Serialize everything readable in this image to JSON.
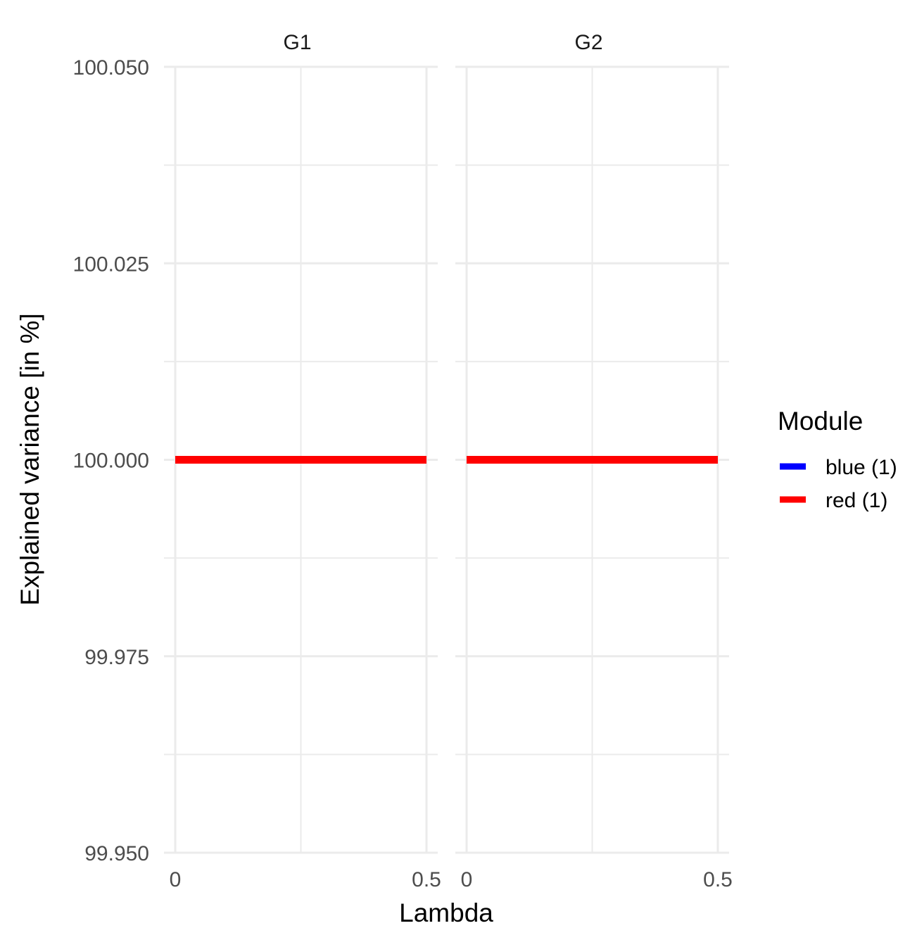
{
  "chart_data": {
    "type": "line",
    "facets": [
      "G1",
      "G2"
    ],
    "xlabel": "Lambda",
    "ylabel": "Explained variance [in %]",
    "xlim": [
      0,
      0.5
    ],
    "ylim": [
      99.95,
      100.05
    ],
    "x_ticks": [
      0,
      0.5
    ],
    "x_tick_labels": [
      "0",
      "0.5"
    ],
    "y_ticks": [
      99.95,
      99.975,
      100.0,
      100.025,
      100.05
    ],
    "y_tick_labels": [
      "99.950",
      "99.975",
      "100.000",
      "100.025",
      "100.050"
    ],
    "grid": true,
    "legend": {
      "title": "Module",
      "position": "right",
      "entries": [
        {
          "label": "blue (1)",
          "color": "#0000ff"
        },
        {
          "label": "red (1)",
          "color": "#ff0000"
        }
      ]
    },
    "series": [
      {
        "facet": "G1",
        "name": "blue (1)",
        "color": "#0000ff",
        "x": [
          0,
          0.5
        ],
        "y": [
          100.0,
          100.0
        ]
      },
      {
        "facet": "G1",
        "name": "red (1)",
        "color": "#ff0000",
        "x": [
          0,
          0.5
        ],
        "y": [
          100.0,
          100.0
        ]
      },
      {
        "facet": "G2",
        "name": "blue (1)",
        "color": "#0000ff",
        "x": [
          0,
          0.5
        ],
        "y": [
          100.0,
          100.0
        ]
      },
      {
        "facet": "G2",
        "name": "red (1)",
        "color": "#ff0000",
        "x": [
          0,
          0.5
        ],
        "y": [
          100.0,
          100.0
        ]
      }
    ]
  }
}
